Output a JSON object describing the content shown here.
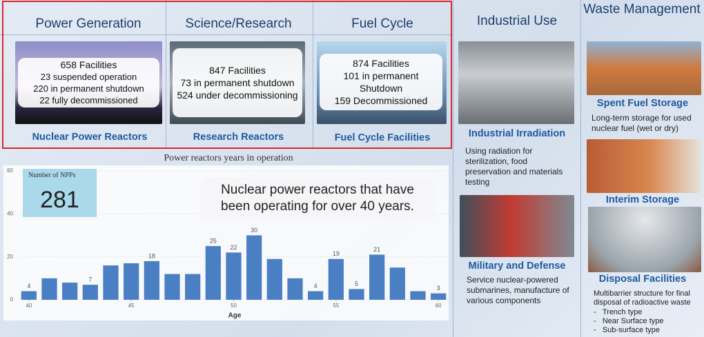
{
  "header": {
    "columns": [
      {
        "title": "Power Generation",
        "card": [
          "658 Facilities",
          "23 suspended operation",
          "220 in permanent shutdown",
          "22 fully decommissioned"
        ],
        "caption": "Nuclear Power Reactors"
      },
      {
        "title": "Science/Research",
        "card": [
          "847 Facilities",
          "73 in permanent shutdown",
          "524 under decommissioning"
        ],
        "caption": "Research Reactors"
      },
      {
        "title": "Fuel Cycle",
        "card": [
          "874 Facilities",
          "101 in permanent Shutdown",
          "159 Decommissioned"
        ],
        "caption": "Fuel Cycle Facilities"
      }
    ]
  },
  "industrial": {
    "title": "Industrial Use",
    "items": [
      {
        "title": "Industrial Irradiation",
        "text": "Using radiation for sterilization, food preservation and materials testing"
      },
      {
        "title": "Military and Defense",
        "text": "Service nuclear-powered submarines, manufacture of various components"
      }
    ]
  },
  "waste": {
    "title": "Waste Management",
    "items": [
      {
        "title": "Spent Fuel Storage",
        "text": "Long-term storage for used nuclear fuel (wet or dry)"
      },
      {
        "title": "Interim Storage"
      },
      {
        "title": "Disposal Facilities",
        "text": "Multibarrier structure for final disposal of radioactive waste",
        "list": [
          "Trench type",
          "Near Surface type",
          "Sub-surface type"
        ]
      }
    ]
  },
  "kpi": {
    "label": "Number of NPPs",
    "value": "281"
  },
  "callout": "Nuclear power reactors that have been operating for over 40 years.",
  "chart_data": {
    "type": "bar",
    "title": "Power reactors years in operation",
    "xlabel": "Age",
    "x": [
      40,
      41,
      42,
      43,
      44,
      45,
      46,
      47,
      48,
      49,
      50,
      51,
      52,
      53,
      54,
      55,
      56,
      57,
      58,
      59,
      60
    ],
    "values": [
      4,
      10,
      8,
      7,
      16,
      17,
      18,
      12,
      12,
      25,
      22,
      30,
      19,
      10,
      4,
      19,
      5,
      21,
      15,
      4,
      3
    ],
    "value_labels": [
      4,
      null,
      null,
      7,
      null,
      null,
      18,
      null,
      null,
      25,
      22,
      30,
      null,
      null,
      4,
      19,
      5,
      21,
      null,
      null,
      3
    ],
    "color": "#4a7fc4",
    "xlim": [
      39.5,
      60.5
    ],
    "xticks": [
      40,
      45,
      50,
      55,
      60
    ],
    "ylim": [
      0,
      60
    ],
    "yticks": [
      0,
      20,
      40,
      60
    ],
    "grid": true
  }
}
